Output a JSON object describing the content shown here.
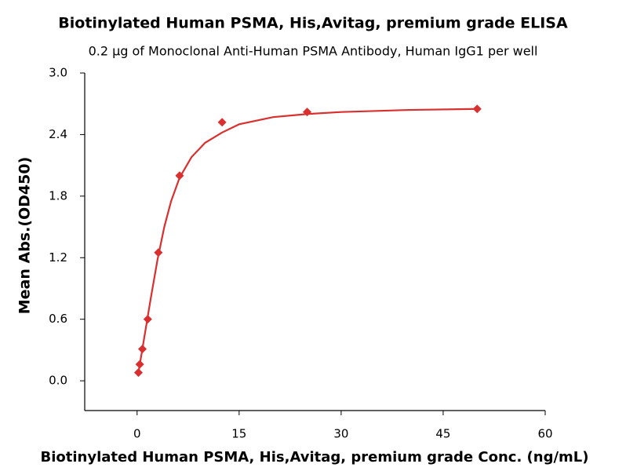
{
  "chart_data": {
    "type": "scatter",
    "title": "Biotinylated Human PSMA, His,Avitag, premium grade ELISA",
    "subtitle": "0.2 µg of Monoclonal Anti-Human PSMA Antibody, Human IgG1 per well",
    "x_label": "Biotinylated Human PSMA, His,Avitag, premium grade Conc. (ng/mL)",
    "y_label": "Mean Abs.(OD450)",
    "xlim": [
      -7.7,
      60
    ],
    "ylim": [
      -0.29,
      3.0
    ],
    "xticks": [
      0,
      15,
      30,
      45,
      60
    ],
    "yticks": [
      {
        "value": 0,
        "label": "0.0"
      },
      0.6,
      1.2,
      1.8,
      2.4,
      {
        "value": 3,
        "label": "3.0"
      }
    ],
    "series": [
      {
        "color": "#d9302f",
        "marker": "diamond",
        "x": [
          0.195,
          0.391,
          0.781,
          1.563,
          3.125,
          6.25,
          12.5,
          25,
          50
        ],
        "values": [
          0.08,
          0.16,
          0.31,
          0.6,
          1.25,
          2.0,
          2.52,
          2.62,
          2.65
        ]
      },
      {
        "color": "#d9302f",
        "marker": "line",
        "x": [
          0.195,
          0.5,
          1,
          1.5,
          2,
          3,
          4,
          5,
          6.25,
          8,
          10,
          12.5,
          15,
          20,
          25,
          30,
          40,
          50
        ],
        "values": [
          0.08,
          0.2,
          0.4,
          0.6,
          0.8,
          1.18,
          1.5,
          1.75,
          1.98,
          2.18,
          2.32,
          2.42,
          2.5,
          2.57,
          2.6,
          2.62,
          2.64,
          2.65
        ]
      }
    ]
  }
}
